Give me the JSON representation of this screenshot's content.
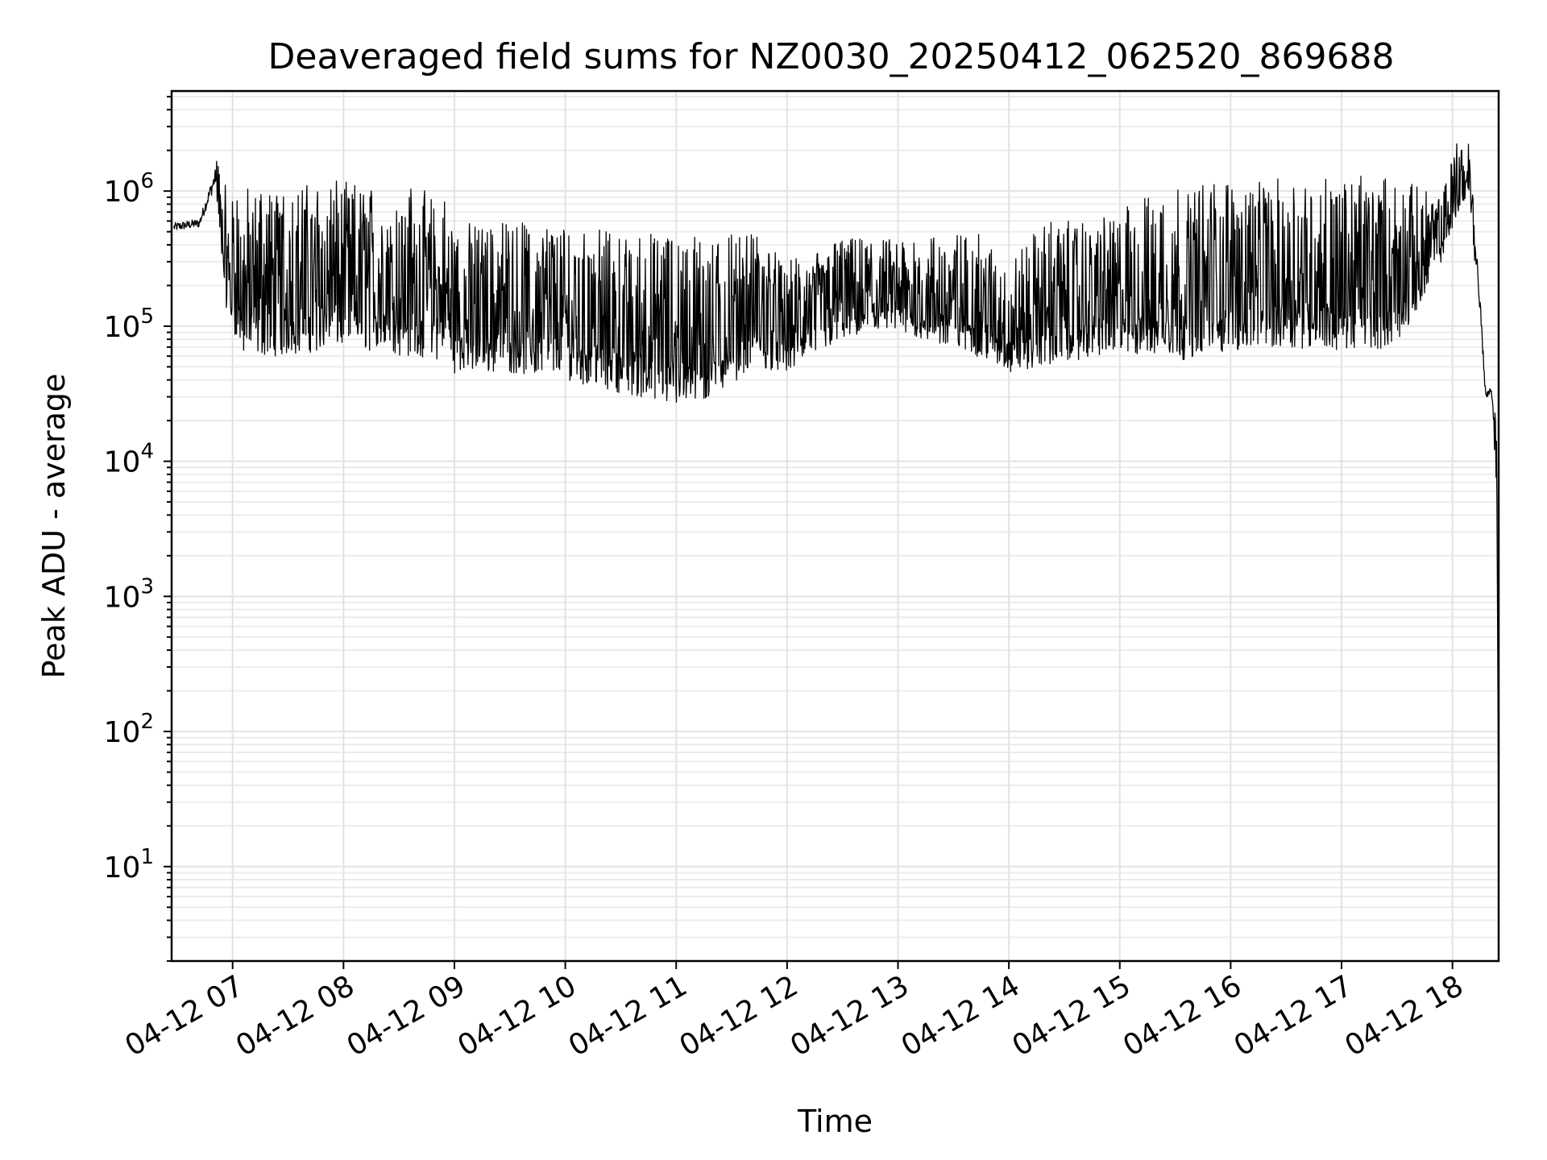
{
  "chart_data": {
    "type": "line",
    "title": "Deaveraged field sums for NZ0030_20250412_062520_869688",
    "xlabel": "Time",
    "ylabel": "Peak ADU - average",
    "yscale": "log",
    "x_axis": {
      "start": "2025-04-12 06:27",
      "end": "2025-04-12 18:25",
      "ticks": [
        "04-12 07",
        "04-12 08",
        "04-12 09",
        "04-12 10",
        "04-12 11",
        "04-12 12",
        "04-12 13",
        "04-12 14",
        "04-12 15",
        "04-12 16",
        "04-12 17",
        "04-12 18"
      ],
      "tick_hours": [
        7,
        8,
        9,
        10,
        11,
        12,
        13,
        14,
        15,
        16,
        17,
        18
      ],
      "tick_rotation_deg": 30
    },
    "y_axis": {
      "ylim": [
        2,
        5500000
      ],
      "ticks": [
        10,
        100,
        1000,
        10000,
        100000,
        1000000
      ],
      "tick_base": "10",
      "tick_exponents": [
        "1",
        "2",
        "3",
        "4",
        "5",
        "6"
      ]
    },
    "grid": true,
    "grid_minor": true,
    "series": [
      {
        "color": "#000000",
        "envelope": {
          "description_hours_low_high": "segments of [hour, lower envelope, upper envelope]",
          "segments": [
            [
              6.47,
              450000,
              650000
            ],
            [
              6.7,
              480000,
              700000
            ],
            [
              6.85,
              900000,
              1900000
            ],
            [
              6.95,
              120000,
              1000000
            ],
            [
              7.1,
              60000,
              1100000
            ],
            [
              7.5,
              60000,
              1100000
            ],
            [
              8.0,
              70000,
              1200000
            ],
            [
              8.5,
              60000,
              1100000
            ],
            [
              8.9,
              55000,
              1000000
            ],
            [
              9.0,
              45000,
              600000
            ],
            [
              9.5,
              45000,
              600000
            ],
            [
              10.0,
              40000,
              550000
            ],
            [
              10.5,
              32000,
              500000
            ],
            [
              11.0,
              25000,
              500000
            ],
            [
              11.3,
              28000,
              450000
            ],
            [
              11.7,
              50000,
              500000
            ],
            [
              12.0,
              45000,
              300000
            ],
            [
              12.5,
              80000,
              450000
            ],
            [
              13.0,
              90000,
              450000
            ],
            [
              13.7,
              60000,
              500000
            ],
            [
              14.0,
              45000,
              300000
            ],
            [
              14.3,
              50000,
              600000
            ],
            [
              14.8,
              60000,
              600000
            ],
            [
              15.2,
              60000,
              900000
            ],
            [
              15.5,
              55000,
              1100000
            ],
            [
              16.0,
              65000,
              1200000
            ],
            [
              16.5,
              70000,
              1250000
            ],
            [
              17.0,
              65000,
              1300000
            ],
            [
              17.5,
              70000,
              1300000
            ],
            [
              17.9,
              300000,
              900000
            ],
            [
              18.05,
              700000,
              2800000
            ],
            [
              18.15,
              900000,
              2300000
            ],
            [
              18.25,
              100000,
              200000
            ],
            [
              18.3,
              25000,
              35000
            ],
            [
              18.35,
              32000,
              38000
            ],
            [
              18.4,
              5000,
              20000
            ],
            [
              18.42,
              4,
              4
            ]
          ]
        }
      }
    ]
  }
}
